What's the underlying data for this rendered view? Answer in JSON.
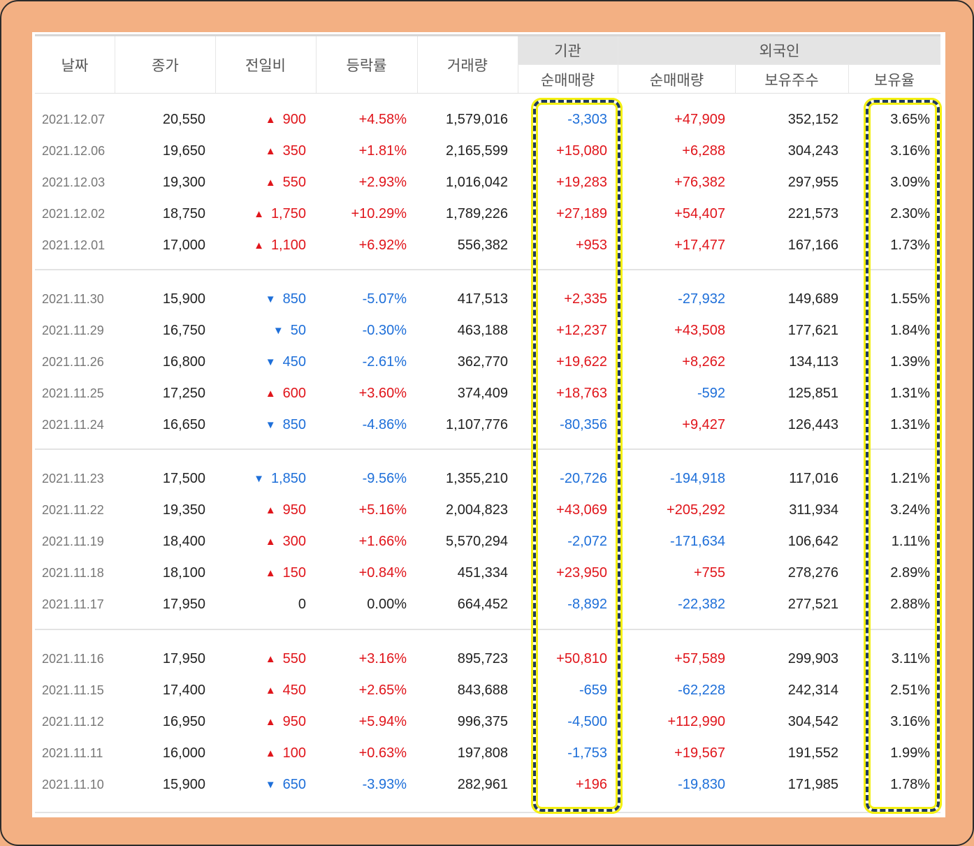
{
  "headers": {
    "date": "날짜",
    "close": "종가",
    "change": "전일비",
    "rate": "등락률",
    "volume": "거래량",
    "institution": "기관",
    "foreign": "외국인",
    "inst_net": "순매매량",
    "for_net": "순매매량",
    "holdings": "보유주수",
    "ratio": "보유율"
  },
  "colors": {
    "up": "#e0151b",
    "down": "#1e6fd9",
    "highlight": "#f4f012",
    "frame": "#f3b083"
  },
  "groups": [
    [
      {
        "date": "2021.12.07",
        "close": "20,550",
        "dir": "up",
        "change": "900",
        "rate": "+4.58%",
        "volume": "1,579,016",
        "inst": "-3,303",
        "foreign": "+47,909",
        "holdings": "352,152",
        "ratio": "3.65%"
      },
      {
        "date": "2021.12.06",
        "close": "19,650",
        "dir": "up",
        "change": "350",
        "rate": "+1.81%",
        "volume": "2,165,599",
        "inst": "+15,080",
        "foreign": "+6,288",
        "holdings": "304,243",
        "ratio": "3.16%"
      },
      {
        "date": "2021.12.03",
        "close": "19,300",
        "dir": "up",
        "change": "550",
        "rate": "+2.93%",
        "volume": "1,016,042",
        "inst": "+19,283",
        "foreign": "+76,382",
        "holdings": "297,955",
        "ratio": "3.09%"
      },
      {
        "date": "2021.12.02",
        "close": "18,750",
        "dir": "up",
        "change": "1,750",
        "rate": "+10.29%",
        "volume": "1,789,226",
        "inst": "+27,189",
        "foreign": "+54,407",
        "holdings": "221,573",
        "ratio": "2.30%"
      },
      {
        "date": "2021.12.01",
        "close": "17,000",
        "dir": "up",
        "change": "1,100",
        "rate": "+6.92%",
        "volume": "556,382",
        "inst": "+953",
        "foreign": "+17,477",
        "holdings": "167,166",
        "ratio": "1.73%"
      }
    ],
    [
      {
        "date": "2021.11.30",
        "close": "15,900",
        "dir": "down",
        "change": "850",
        "rate": "-5.07%",
        "volume": "417,513",
        "inst": "+2,335",
        "foreign": "-27,932",
        "holdings": "149,689",
        "ratio": "1.55%"
      },
      {
        "date": "2021.11.29",
        "close": "16,750",
        "dir": "down",
        "change": "50",
        "rate": "-0.30%",
        "volume": "463,188",
        "inst": "+12,237",
        "foreign": "+43,508",
        "holdings": "177,621",
        "ratio": "1.84%"
      },
      {
        "date": "2021.11.26",
        "close": "16,800",
        "dir": "down",
        "change": "450",
        "rate": "-2.61%",
        "volume": "362,770",
        "inst": "+19,622",
        "foreign": "+8,262",
        "holdings": "134,113",
        "ratio": "1.39%"
      },
      {
        "date": "2021.11.25",
        "close": "17,250",
        "dir": "up",
        "change": "600",
        "rate": "+3.60%",
        "volume": "374,409",
        "inst": "+18,763",
        "foreign": "-592",
        "holdings": "125,851",
        "ratio": "1.31%"
      },
      {
        "date": "2021.11.24",
        "close": "16,650",
        "dir": "down",
        "change": "850",
        "rate": "-4.86%",
        "volume": "1,107,776",
        "inst": "-80,356",
        "foreign": "+9,427",
        "holdings": "126,443",
        "ratio": "1.31%"
      }
    ],
    [
      {
        "date": "2021.11.23",
        "close": "17,500",
        "dir": "down",
        "change": "1,850",
        "rate": "-9.56%",
        "volume": "1,355,210",
        "inst": "-20,726",
        "foreign": "-194,918",
        "holdings": "117,016",
        "ratio": "1.21%"
      },
      {
        "date": "2021.11.22",
        "close": "19,350",
        "dir": "up",
        "change": "950",
        "rate": "+5.16%",
        "volume": "2,004,823",
        "inst": "+43,069",
        "foreign": "+205,292",
        "holdings": "311,934",
        "ratio": "3.24%"
      },
      {
        "date": "2021.11.19",
        "close": "18,400",
        "dir": "up",
        "change": "300",
        "rate": "+1.66%",
        "volume": "5,570,294",
        "inst": "-2,072",
        "foreign": "-171,634",
        "holdings": "106,642",
        "ratio": "1.11%"
      },
      {
        "date": "2021.11.18",
        "close": "18,100",
        "dir": "up",
        "change": "150",
        "rate": "+0.84%",
        "volume": "451,334",
        "inst": "+23,950",
        "foreign": "+755",
        "holdings": "278,276",
        "ratio": "2.89%"
      },
      {
        "date": "2021.11.17",
        "close": "17,950",
        "dir": "none",
        "change": "0",
        "rate": "0.00%",
        "volume": "664,452",
        "inst": "-8,892",
        "foreign": "-22,382",
        "holdings": "277,521",
        "ratio": "2.88%"
      }
    ],
    [
      {
        "date": "2021.11.16",
        "close": "17,950",
        "dir": "up",
        "change": "550",
        "rate": "+3.16%",
        "volume": "895,723",
        "inst": "+50,810",
        "foreign": "+57,589",
        "holdings": "299,903",
        "ratio": "3.11%"
      },
      {
        "date": "2021.11.15",
        "close": "17,400",
        "dir": "up",
        "change": "450",
        "rate": "+2.65%",
        "volume": "843,688",
        "inst": "-659",
        "foreign": "-62,228",
        "holdings": "242,314",
        "ratio": "2.51%"
      },
      {
        "date": "2021.11.12",
        "close": "16,950",
        "dir": "up",
        "change": "950",
        "rate": "+5.94%",
        "volume": "996,375",
        "inst": "-4,500",
        "foreign": "+112,990",
        "holdings": "304,542",
        "ratio": "3.16%"
      },
      {
        "date": "2021.11.11",
        "close": "16,000",
        "dir": "up",
        "change": "100",
        "rate": "+0.63%",
        "volume": "197,808",
        "inst": "-1,753",
        "foreign": "+19,567",
        "holdings": "191,552",
        "ratio": "1.99%"
      },
      {
        "date": "2021.11.10",
        "close": "15,900",
        "dir": "down",
        "change": "650",
        "rate": "-3.93%",
        "volume": "282,961",
        "inst": "+196",
        "foreign": "-19,830",
        "holdings": "171,985",
        "ratio": "1.78%"
      }
    ]
  ]
}
